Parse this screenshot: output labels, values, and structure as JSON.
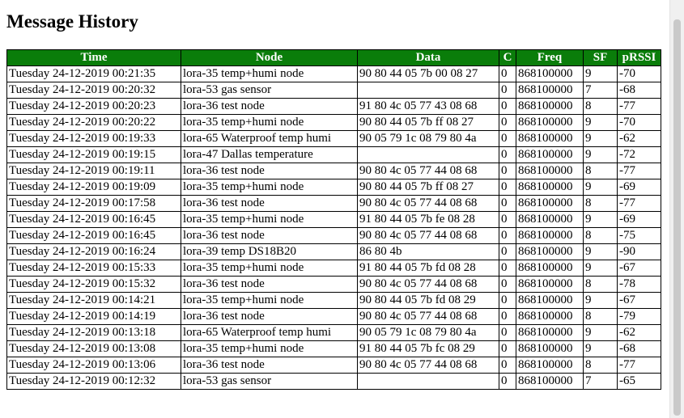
{
  "page": {
    "title": "Message History"
  },
  "table": {
    "headers": [
      "Time",
      "Node",
      "Data",
      "C",
      "Freq",
      "SF",
      "pRSSI"
    ],
    "rows": [
      [
        "Tuesday 24-12-2019 00:21:35",
        "lora-35 temp+humi node",
        "90 80 44 05 7b 00 08 27",
        "0",
        "868100000",
        "9",
        "-70"
      ],
      [
        "Tuesday 24-12-2019 00:20:32",
        "lora-53 gas sensor",
        "",
        "0",
        "868100000",
        "7",
        "-68"
      ],
      [
        "Tuesday 24-12-2019 00:20:23",
        "lora-36 test node",
        "91 80 4c 05 77 43 08 68",
        "0",
        "868100000",
        "8",
        "-77"
      ],
      [
        "Tuesday 24-12-2019 00:20:22",
        "lora-35 temp+humi node",
        "90 80 44 05 7b ff 08 27",
        "0",
        "868100000",
        "9",
        "-70"
      ],
      [
        "Tuesday 24-12-2019 00:19:33",
        "lora-65 Waterproof temp humi",
        "90 05 79 1c 08 79 80 4a",
        "0",
        "868100000",
        "9",
        "-62"
      ],
      [
        "Tuesday 24-12-2019 00:19:15",
        "lora-47 Dallas temperature",
        "",
        "0",
        "868100000",
        "9",
        "-72"
      ],
      [
        "Tuesday 24-12-2019 00:19:11",
        "lora-36 test node",
        "90 80 4c 05 77 44 08 68",
        "0",
        "868100000",
        "8",
        "-77"
      ],
      [
        "Tuesday 24-12-2019 00:19:09",
        "lora-35 temp+humi node",
        "90 80 44 05 7b ff 08 27",
        "0",
        "868100000",
        "9",
        "-69"
      ],
      [
        "Tuesday 24-12-2019 00:17:58",
        "lora-36 test node",
        "90 80 4c 05 77 44 08 68",
        "0",
        "868100000",
        "8",
        "-77"
      ],
      [
        "Tuesday 24-12-2019 00:16:45",
        "lora-35 temp+humi node",
        "91 80 44 05 7b fe 08 28",
        "0",
        "868100000",
        "9",
        "-69"
      ],
      [
        "Tuesday 24-12-2019 00:16:45",
        "lora-36 test node",
        "90 80 4c 05 77 44 08 68",
        "0",
        "868100000",
        "8",
        "-75"
      ],
      [
        "Tuesday 24-12-2019 00:16:24",
        "lora-39 temp DS18B20",
        "86 80 4b",
        "0",
        "868100000",
        "9",
        "-90"
      ],
      [
        "Tuesday 24-12-2019 00:15:33",
        "lora-35 temp+humi node",
        "91 80 44 05 7b fd 08 28",
        "0",
        "868100000",
        "9",
        "-67"
      ],
      [
        "Tuesday 24-12-2019 00:15:32",
        "lora-36 test node",
        "90 80 4c 05 77 44 08 68",
        "0",
        "868100000",
        "8",
        "-78"
      ],
      [
        "Tuesday 24-12-2019 00:14:21",
        "lora-35 temp+humi node",
        "90 80 44 05 7b fd 08 29",
        "0",
        "868100000",
        "9",
        "-67"
      ],
      [
        "Tuesday 24-12-2019 00:14:19",
        "lora-36 test node",
        "90 80 4c 05 77 44 08 68",
        "0",
        "868100000",
        "8",
        "-79"
      ],
      [
        "Tuesday 24-12-2019 00:13:18",
        "lora-65 Waterproof temp humi",
        "90 05 79 1c 08 79 80 4a",
        "0",
        "868100000",
        "9",
        "-62"
      ],
      [
        "Tuesday 24-12-2019 00:13:08",
        "lora-35 temp+humi node",
        "91 80 44 05 7b fc 08 29",
        "0",
        "868100000",
        "9",
        "-68"
      ],
      [
        "Tuesday 24-12-2019 00:13:06",
        "lora-36 test node",
        "90 80 4c 05 77 44 08 68",
        "0",
        "868100000",
        "8",
        "-77"
      ],
      [
        "Tuesday 24-12-2019 00:12:32",
        "lora-53 gas sensor",
        "",
        "0",
        "868100000",
        "7",
        "-65"
      ]
    ]
  },
  "colors": {
    "header_bg": "#0a7d0a",
    "header_text": "#ffffff",
    "border": "#000000"
  }
}
